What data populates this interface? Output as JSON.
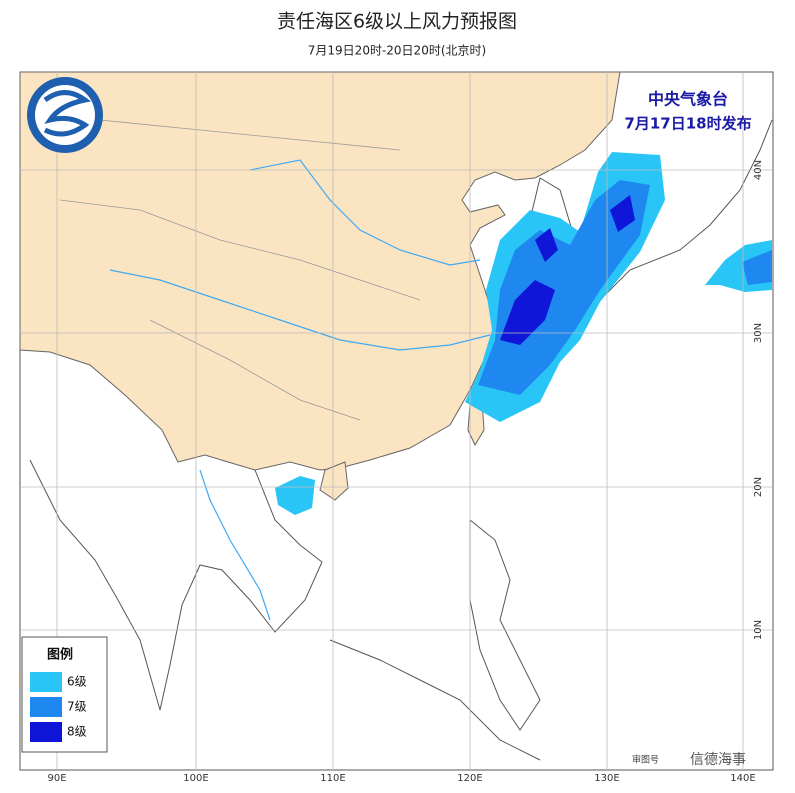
{
  "header": {
    "title": "责任海区6级以上风力预报图",
    "subtitle": "7月19日20时-20日20时(北京时)"
  },
  "issuer": {
    "agency": "中央气象台",
    "issued": "7月17日18时发布"
  },
  "legend": {
    "title": "图例",
    "items": [
      "6级",
      "7级",
      "8级"
    ]
  },
  "longitude_labels": [
    "90E",
    "100E",
    "110E",
    "120E",
    "130E",
    "140E"
  ],
  "latitude_labels": [
    "40N",
    "30N",
    "20N",
    "10N"
  ],
  "footer": {
    "map_number": "审图号",
    "watermark": "信德海事"
  }
}
